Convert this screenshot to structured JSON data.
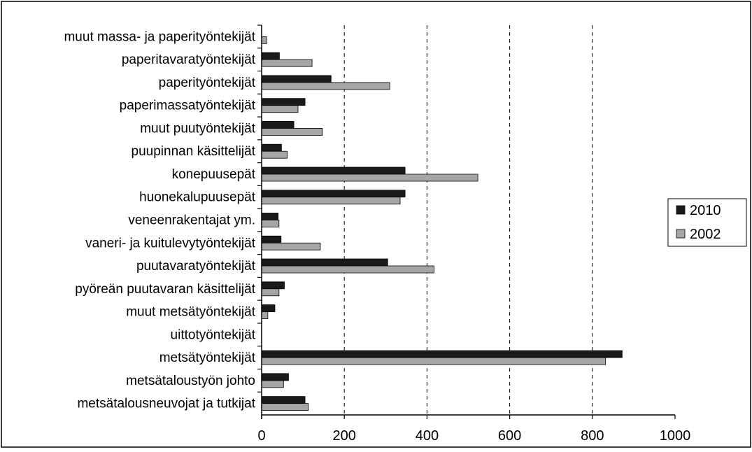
{
  "colors": {
    "series_2010": "#1a1a1a",
    "series_2002": "#a6a6a6",
    "grid": "#000000",
    "background": "#ffffff"
  },
  "chart_data": {
    "type": "bar",
    "orientation": "horizontal",
    "title": "",
    "xlabel": "",
    "ylabel": "",
    "xlim": [
      0,
      1000
    ],
    "x_ticks": [
      "0",
      "200",
      "400",
      "600",
      "800",
      "1000"
    ],
    "grid": "vertical dashed",
    "legend_position": "right",
    "categories": [
      "muut massa- ja paperityöntekijät",
      "paperitavaratyöntekijät",
      "paperityöntekijät",
      "paperimassatyöntekijät",
      "muut puutyöntekijät",
      "puupinnan käsittelijät",
      "konepuusepät",
      "huonekalupuusepät",
      "veneenrakentajat ym.",
      "vaneri- ja kuitulevytyöntekijät",
      "puutavaratyöntekijät",
      "pyöreän puutavaran käsittelijät",
      "muut metsätyöntekijät",
      "uittotyöntekijät",
      "metsätyöntekijät",
      "metsätaloustyön johto",
      "metsätalousneuvojat ja tutkijat"
    ],
    "series": [
      {
        "name": "2010",
        "values": [
          0,
          43,
          168,
          105,
          78,
          48,
          347,
          347,
          40,
          47,
          305,
          55,
          32,
          0,
          872,
          65,
          105
        ]
      },
      {
        "name": "2002",
        "values": [
          12,
          122,
          310,
          88,
          147,
          62,
          523,
          335,
          42,
          142,
          417,
          42,
          15,
          0,
          832,
          53,
          113
        ]
      }
    ]
  }
}
